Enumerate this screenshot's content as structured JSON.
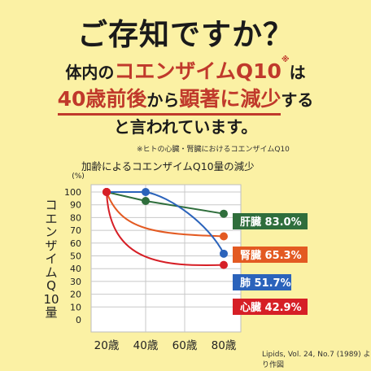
{
  "headline": "ご存知ですか？",
  "line1": {
    "pre": "体内の",
    "highlight": "コエンザイムQ10",
    "mark": "※",
    "post": "は"
  },
  "line2": {
    "highlight": "40歳前後",
    "mid": "から",
    "highlight2": "顕著に減少",
    "post": "する"
  },
  "line3": "と言われています。",
  "footnote": "※ヒトの心臓・腎臓におけるコエンザイムQ10",
  "source": "Lipids, Vol. 24, No.7 (1989) より作図",
  "colors": {
    "heart": "#d61f26",
    "kidney": "#e35a22",
    "lung": "#2b63bb",
    "liver": "#2f6e3c"
  },
  "chart_data": {
    "type": "line",
    "title": "加齢によるコエンザイムQ10量の減少",
    "ylabel": "コエンザイムQ10量",
    "yunit": "(%)",
    "ylim": [
      0,
      100
    ],
    "yticks": [
      "0",
      "10",
      "20",
      "30",
      "40",
      "50",
      "60",
      "70",
      "80",
      "90",
      "100"
    ],
    "xticks": [
      "20歳",
      "40歳",
      "60歳",
      "80歳"
    ],
    "series": [
      {
        "name": "肝臓",
        "label": "83.0%",
        "color": "#2f6e3c",
        "x": [
          20,
          40,
          80
        ],
        "values": [
          100,
          93,
          83.0
        ]
      },
      {
        "name": "腎臓",
        "label": "65.3%",
        "color": "#e35a22",
        "x": [
          20,
          80
        ],
        "values": [
          100,
          65.3
        ]
      },
      {
        "name": "肺",
        "label": "51.7%",
        "color": "#2b63bb",
        "x": [
          20,
          40,
          80
        ],
        "values": [
          100,
          100,
          51.7
        ]
      },
      {
        "name": "心臓",
        "label": "42.9%",
        "color": "#d61f26",
        "x": [
          20,
          80
        ],
        "values": [
          100,
          42.9
        ]
      }
    ]
  }
}
